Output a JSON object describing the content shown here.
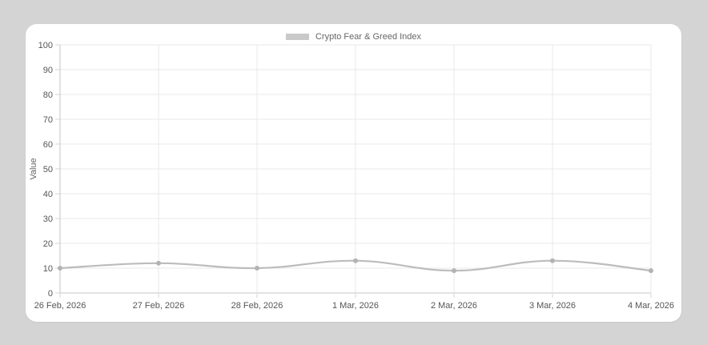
{
  "page": {
    "background_color": "#d4d4d4",
    "card_background": "#ffffff"
  },
  "legend": {
    "label": "Crypto Fear & Greed Index",
    "swatch_color": "#c9c9c9"
  },
  "chart_data": {
    "type": "line",
    "title": "",
    "categories": [
      "26 Feb, 2026",
      "27 Feb, 2026",
      "28 Feb, 2026",
      "1 Mar, 2026",
      "2 Mar, 2026",
      "3 Mar, 2026",
      "4 Mar, 2026"
    ],
    "series": [
      {
        "name": "Crypto Fear & Greed Index",
        "values": [
          10,
          12,
          10,
          13,
          9,
          13,
          9
        ]
      }
    ],
    "xlabel": "",
    "ylabel": "Value",
    "ylim": [
      0,
      100
    ],
    "ytick_step": 10,
    "grid": true,
    "legend_position": "top",
    "line_color": "#bcbcbc",
    "point_color": "#b3b3b3",
    "grid_color": "#e9e9e9",
    "axis_color": "#c6c6c6",
    "tick_color": "#d6d6d6",
    "tick_label_color": "#555555",
    "axis_title_color": "#666666"
  }
}
